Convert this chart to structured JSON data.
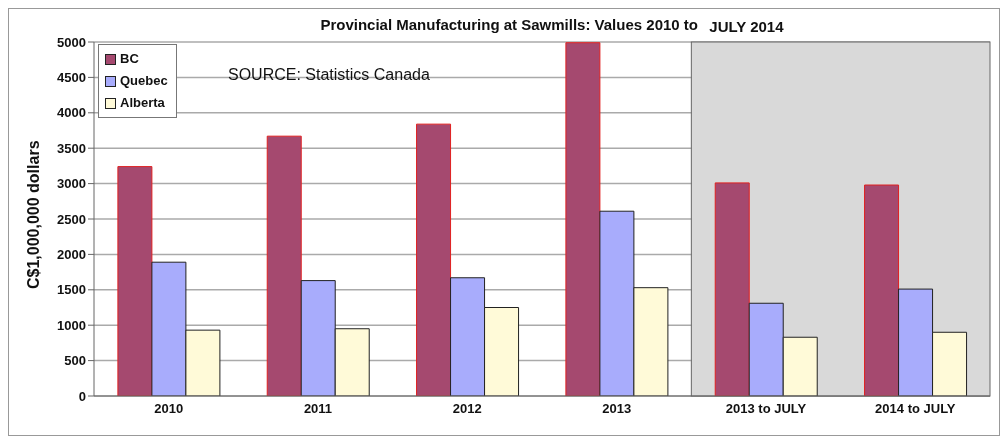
{
  "chart_data": {
    "type": "bar",
    "title": "Provincial Manufacturing at Sawmills: Values 2010 to",
    "ylabel": "C$1,000,000 dollars",
    "categories": [
      "2010",
      "2011",
      "2012",
      "2013",
      "2013 to JULY",
      "2014 to JULY"
    ],
    "series": [
      {
        "name": "BC",
        "color": "#a5496f",
        "values": [
          3240,
          3670,
          3840,
          4990,
          3010,
          2980
        ]
      },
      {
        "name": "Quebec",
        "color": "#a8acfc",
        "values": [
          1890,
          1630,
          1670,
          2610,
          1310,
          1510
        ]
      },
      {
        "name": "Alberta",
        "color": "#fffad8",
        "values": [
          930,
          950,
          1250,
          1530,
          830,
          900
        ]
      }
    ],
    "ylim": [
      0,
      5000
    ],
    "yticks": [
      0,
      500,
      1000,
      1500,
      2000,
      2500,
      3000,
      3500,
      4000,
      4500,
      5000
    ],
    "grid": "y",
    "legend": "top left",
    "bands": [
      {
        "axis": "x",
        "from": "2013 to JULY",
        "to": "2014 to JULY",
        "label": "JULY 2014",
        "color": "#d9d9d9"
      }
    ],
    "annotations": [
      "SOURCE: Statistics Canada"
    ]
  }
}
